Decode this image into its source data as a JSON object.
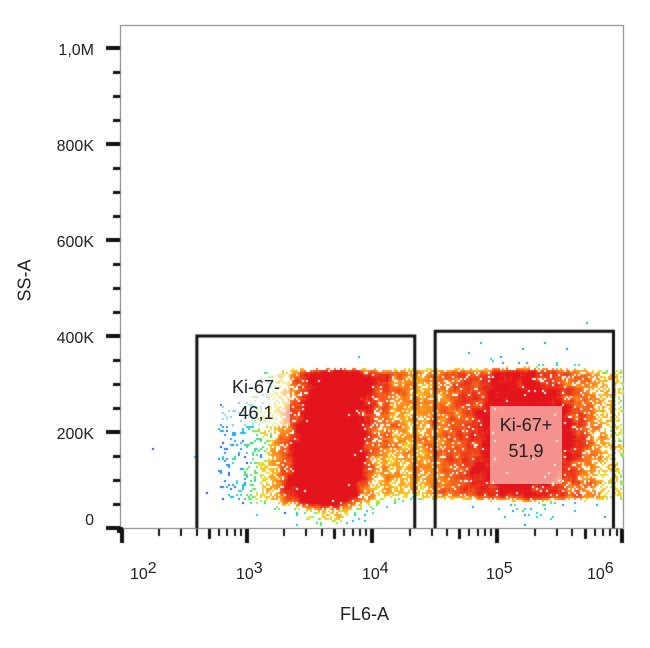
{
  "chart_data": {
    "type": "scatter",
    "subtype": "flow-cytometry-density-plot",
    "title": "",
    "xlabel": "FL6-A",
    "ylabel": "SS-A",
    "x_scale": "log",
    "x_range": [
      100,
      1200000
    ],
    "x_ticks": [
      {
        "base": "10",
        "exp": "2",
        "value": 100
      },
      {
        "base": "10",
        "exp": "3",
        "value": 1000
      },
      {
        "base": "10",
        "exp": "4",
        "value": 10000
      },
      {
        "base": "10",
        "exp": "5",
        "value": 100000
      },
      {
        "base": "10",
        "exp": "6",
        "value": 1000000
      }
    ],
    "y_scale": "linear",
    "y_range": [
      0,
      1050000
    ],
    "y_ticks": [
      {
        "label": "0",
        "value": 0
      },
      {
        "label": "200K",
        "value": 200000
      },
      {
        "label": "400K",
        "value": 400000
      },
      {
        "label": "600K",
        "value": 600000
      },
      {
        "label": "800K",
        "value": 800000
      },
      {
        "label": "1,0M",
        "value": 1000000
      }
    ],
    "grid": false,
    "colormap": [
      "#0a1fd6",
      "#1e5cff",
      "#19c6e6",
      "#3be36a",
      "#f2e324",
      "#ff8a1a",
      "#e3141c"
    ],
    "populations": [
      {
        "name": "Ki-67- cluster",
        "x_center": 4500,
        "y_center": 150000,
        "x_spread_log": 0.35,
        "y_range": [
          50000,
          330000
        ],
        "peak_density": "high"
      },
      {
        "name": "Ki-67+ cluster",
        "x_center": 200000,
        "y_center": 200000,
        "x_spread_log": 0.45,
        "y_range": [
          60000,
          330000
        ],
        "peak_density": "medium"
      }
    ],
    "gates": [
      {
        "name": "Ki-67-",
        "percent": "46,1",
        "x_min": 400,
        "x_max": 22000,
        "y_min": 0,
        "y_max": 400000
      },
      {
        "name": "Ki-67+",
        "percent": "51,9",
        "x_min": 32000,
        "x_max": 850000,
        "y_min": 0,
        "y_max": 410000
      }
    ]
  },
  "labels": {
    "xlabel": "FL6-A",
    "ylabel": "SS-A",
    "gate1_name": "Ki-67-",
    "gate1_pct": "46,1",
    "gate2_name": "Ki-67+",
    "gate2_pct": "51,9",
    "yticks": [
      "1,0M",
      "800K",
      "600K",
      "400K",
      "200K",
      "0"
    ],
    "xbase": "10",
    "xexps": [
      "2",
      "3",
      "4",
      "5",
      "6"
    ]
  }
}
